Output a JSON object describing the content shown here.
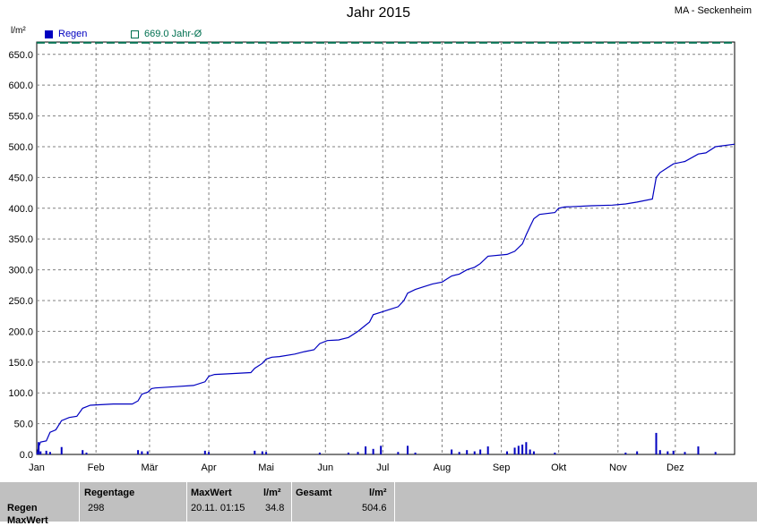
{
  "header": {
    "title": "Jahr 2015",
    "station": "MA - Seckenheim",
    "unit": "l/m²"
  },
  "legend": {
    "rain_label": "Regen",
    "avg_label": "669.0 Jahr-Ø"
  },
  "colors": {
    "rain": "#0000c0",
    "avg": "#007050",
    "grid": "#808080"
  },
  "chart_data": {
    "type": "line",
    "title": "Jahr 2015",
    "ylabel": "l/m²",
    "ylim": [
      0,
      670
    ],
    "yticks": [
      "0.0",
      "50.0",
      "100.0",
      "150.0",
      "200.0",
      "250.0",
      "300.0",
      "350.0",
      "400.0",
      "450.0",
      "500.0",
      "550.0",
      "600.0",
      "650.0"
    ],
    "xlim": [
      0,
      365
    ],
    "xticks": [
      {
        "label": "Jan",
        "day": 0
      },
      {
        "label": "Feb",
        "day": 31
      },
      {
        "label": "Mär",
        "day": 59
      },
      {
        "label": "Apr",
        "day": 90
      },
      {
        "label": "Mai",
        "day": 120
      },
      {
        "label": "Jun",
        "day": 151
      },
      {
        "label": "Jul",
        "day": 181
      },
      {
        "label": "Aug",
        "day": 212
      },
      {
        "label": "Sep",
        "day": 243
      },
      {
        "label": "Okt",
        "day": 273
      },
      {
        "label": "Nov",
        "day": 304
      },
      {
        "label": "Dez",
        "day": 334
      }
    ],
    "grid": true,
    "series": [
      {
        "name": "Regen",
        "kind": "cumulative",
        "points": [
          [
            0,
            0
          ],
          [
            1,
            12
          ],
          [
            2,
            20
          ],
          [
            5,
            22
          ],
          [
            7,
            36
          ],
          [
            10,
            40
          ],
          [
            13,
            55
          ],
          [
            17,
            60
          ],
          [
            21,
            62
          ],
          [
            24,
            75
          ],
          [
            28,
            80
          ],
          [
            40,
            82
          ],
          [
            50,
            82
          ],
          [
            53,
            87
          ],
          [
            55,
            98
          ],
          [
            58,
            101
          ],
          [
            60,
            107
          ],
          [
            62,
            108
          ],
          [
            72,
            110
          ],
          [
            82,
            112
          ],
          [
            88,
            118
          ],
          [
            90,
            127
          ],
          [
            93,
            130
          ],
          [
            100,
            131
          ],
          [
            112,
            133
          ],
          [
            114,
            140
          ],
          [
            118,
            148
          ],
          [
            120,
            155
          ],
          [
            123,
            158
          ],
          [
            127,
            159
          ],
          [
            135,
            163
          ],
          [
            140,
            167
          ],
          [
            145,
            170
          ],
          [
            148,
            180
          ],
          [
            152,
            185
          ],
          [
            158,
            186
          ],
          [
            163,
            190
          ],
          [
            168,
            200
          ],
          [
            172,
            210
          ],
          [
            174,
            215
          ],
          [
            176,
            227
          ],
          [
            180,
            231
          ],
          [
            184,
            235
          ],
          [
            189,
            240
          ],
          [
            192,
            250
          ],
          [
            194,
            262
          ],
          [
            198,
            268
          ],
          [
            202,
            272
          ],
          [
            207,
            277
          ],
          [
            212,
            280
          ],
          [
            217,
            290
          ],
          [
            221,
            293
          ],
          [
            225,
            300
          ],
          [
            229,
            304
          ],
          [
            232,
            310
          ],
          [
            236,
            322
          ],
          [
            246,
            325
          ],
          [
            250,
            330
          ],
          [
            254,
            342
          ],
          [
            256,
            357
          ],
          [
            258,
            370
          ],
          [
            260,
            383
          ],
          [
            263,
            390
          ],
          [
            271,
            393
          ],
          [
            273,
            400
          ],
          [
            276,
            402
          ],
          [
            290,
            404
          ],
          [
            301,
            405
          ],
          [
            308,
            407
          ],
          [
            314,
            410
          ],
          [
            322,
            415
          ],
          [
            324,
            450
          ],
          [
            326,
            458
          ],
          [
            330,
            466
          ],
          [
            333,
            472
          ],
          [
            339,
            476
          ],
          [
            346,
            488
          ],
          [
            350,
            490
          ],
          [
            355,
            500
          ],
          [
            365,
            504
          ]
        ]
      },
      {
        "name": "Regen",
        "kind": "daily",
        "points": [
          [
            1,
            20
          ],
          [
            2,
            5
          ],
          [
            5,
            6
          ],
          [
            7,
            4
          ],
          [
            13,
            12
          ],
          [
            24,
            7
          ],
          [
            26,
            3
          ],
          [
            53,
            7
          ],
          [
            55,
            5
          ],
          [
            58,
            5
          ],
          [
            88,
            6
          ],
          [
            90,
            4
          ],
          [
            114,
            6
          ],
          [
            118,
            5
          ],
          [
            120,
            4
          ],
          [
            148,
            3
          ],
          [
            163,
            3
          ],
          [
            168,
            4
          ],
          [
            172,
            13
          ],
          [
            176,
            9
          ],
          [
            180,
            14
          ],
          [
            189,
            4
          ],
          [
            194,
            14
          ],
          [
            198,
            3
          ],
          [
            217,
            8
          ],
          [
            221,
            4
          ],
          [
            225,
            7
          ],
          [
            229,
            5
          ],
          [
            232,
            8
          ],
          [
            236,
            13
          ],
          [
            246,
            5
          ],
          [
            250,
            11
          ],
          [
            252,
            14
          ],
          [
            254,
            16
          ],
          [
            256,
            20
          ],
          [
            258,
            8
          ],
          [
            260,
            5
          ],
          [
            271,
            3
          ],
          [
            308,
            3
          ],
          [
            314,
            5
          ],
          [
            324,
            35
          ],
          [
            326,
            7
          ],
          [
            330,
            5
          ],
          [
            333,
            6
          ],
          [
            339,
            4
          ],
          [
            346,
            13
          ],
          [
            355,
            4
          ]
        ]
      },
      {
        "name": "669.0 Jahr-Ø",
        "kind": "average",
        "value": 669.0
      }
    ]
  },
  "footer": {
    "row_label": "Regen",
    "row2_label": "MaxWert",
    "col_days_header": "Regentage",
    "col_days_value": "298",
    "col_max_header": "MaxWert",
    "col_max_unit": "l/m²",
    "col_max_date": "20.11.  01:15",
    "col_max_value": "34.8",
    "col_total_header": "Gesamt",
    "col_total_unit": "l/m²",
    "col_total_value": "504.6"
  }
}
